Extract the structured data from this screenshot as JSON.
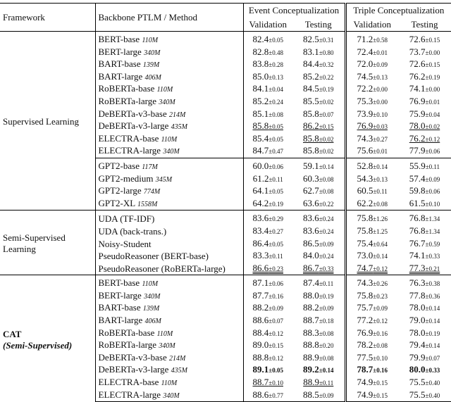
{
  "header": {
    "framework": "Framework",
    "method": "Backbone PTLM / Method",
    "event": "Event Conceptualization",
    "triple": "Triple Conceptualization",
    "columns": [
      "Validation",
      "Testing",
      "Validation",
      "Testing"
    ]
  },
  "groups": [
    {
      "framework": "Supervised Learning",
      "blocks": [
        [
          {
            "method": "BERT-base",
            "size": "110M",
            "cells": [
              [
                "82.4",
                "±0.05"
              ],
              [
                "82.5",
                "±0.31"
              ],
              [
                "71.2",
                "±0.58"
              ],
              [
                "72.6",
                "±0.15"
              ]
            ]
          },
          {
            "method": "BERT-large",
            "size": "340M",
            "cells": [
              [
                "82.8",
                "±0.48"
              ],
              [
                "83.1",
                "±0.80"
              ],
              [
                "72.4",
                "±0.01"
              ],
              [
                "73.7",
                "±0.00"
              ]
            ]
          },
          {
            "method": "BART-base",
            "size": "139M",
            "cells": [
              [
                "83.8",
                "±0.28"
              ],
              [
                "84.4",
                "±0.32"
              ],
              [
                "72.0",
                "±0.09"
              ],
              [
                "72.6",
                "±0.15"
              ]
            ]
          },
          {
            "method": "BART-large",
            "size": "406M",
            "cells": [
              [
                "85.0",
                "±0.13"
              ],
              [
                "85.2",
                "±0.22"
              ],
              [
                "74.5",
                "±0.13"
              ],
              [
                "76.2",
                "±0.19"
              ]
            ]
          },
          {
            "method": "RoBERTa-base",
            "size": "110M",
            "cells": [
              [
                "84.1",
                "±0.04"
              ],
              [
                "84.5",
                "±0.19"
              ],
              [
                "72.2",
                "±0.00"
              ],
              [
                "74.1",
                "±0.00"
              ]
            ]
          },
          {
            "method": "RoBERTa-large",
            "size": "340M",
            "cells": [
              [
                "85.2",
                "±0.24"
              ],
              [
                "85.5",
                "±0.02"
              ],
              [
                "75.3",
                "±0.00"
              ],
              [
                "76.9",
                "±0.01"
              ]
            ]
          },
          {
            "method": "DeBERTa-v3-base",
            "size": "214M",
            "cells": [
              [
                "85.1",
                "±0.08"
              ],
              [
                "85.8",
                "±0.07"
              ],
              [
                "73.9",
                "±0.10"
              ],
              [
                "75.9",
                "±0.04"
              ]
            ]
          },
          {
            "method": "DeBERTa-v3-large",
            "size": "435M",
            "cells": [
              [
                "85.8",
                "±0.05"
              ],
              [
                "86.2",
                "±0.15"
              ],
              [
                "76.9",
                "±0.03"
              ],
              [
                "78.0",
                "±0.02"
              ]
            ]
          },
          {
            "method": "ELECTRA-base",
            "size": "110M",
            "cells": [
              [
                "85.4",
                "±0.05"
              ],
              [
                "85.8",
                "±0.02"
              ],
              [
                "74.3",
                "±0.27"
              ],
              [
                "76.2",
                "±0.12"
              ]
            ]
          },
          {
            "method": "ELECTRA-large",
            "size": "340M",
            "cells": [
              [
                "84.7",
                "±0.47"
              ],
              [
                "85.8",
                "±0.02"
              ],
              [
                "75.6",
                "±0.01"
              ],
              [
                "77.9",
                "±0.06"
              ]
            ]
          }
        ],
        [
          {
            "method": "GPT2-base",
            "size": "117M",
            "cells": [
              [
                "60.0",
                "±0.06"
              ],
              [
                "59.1",
                "±0.14"
              ],
              [
                "52.8",
                "±0.14"
              ],
              [
                "55.9",
                "±0.11"
              ]
            ]
          },
          {
            "method": "GPT2-medium",
            "size": "345M",
            "cells": [
              [
                "61.2",
                "±0.11"
              ],
              [
                "60.3",
                "±0.08"
              ],
              [
                "54.3",
                "±0.13"
              ],
              [
                "57.4",
                "±0.09"
              ]
            ]
          },
          {
            "method": "GPT2-large",
            "size": "774M",
            "cells": [
              [
                "64.1",
                "±0.05"
              ],
              [
                "62.7",
                "±0.08"
              ],
              [
                "60.5",
                "±0.11"
              ],
              [
                "59.8",
                "±0.06"
              ]
            ]
          },
          {
            "method": "GPT2-XL",
            "size": "1558M",
            "cells": [
              [
                "64.2",
                "±0.19"
              ],
              [
                "63.6",
                "±0.22"
              ],
              [
                "62.2",
                "±0.08"
              ],
              [
                "61.5",
                "±0.10"
              ]
            ]
          }
        ]
      ]
    },
    {
      "framework": "Semi-Supervised Learning",
      "blocks": [
        [
          {
            "method": "UDA (TF-IDF)",
            "cells": [
              [
                "83.6",
                "±0.29"
              ],
              [
                "83.6",
                "±0.24"
              ],
              [
                "75.8",
                "±1.26"
              ],
              [
                "76.8",
                "±1.34"
              ]
            ]
          },
          {
            "method": "UDA (back-trans.)",
            "cells": [
              [
                "83.4",
                "±0.27"
              ],
              [
                "83.6",
                "±0.24"
              ],
              [
                "75.8",
                "±1.25"
              ],
              [
                "76.8",
                "±1.34"
              ]
            ]
          },
          {
            "method": "Noisy-Student",
            "cells": [
              [
                "86.4",
                "±0.05"
              ],
              [
                "86.5",
                "±0.09"
              ],
              [
                "75.4",
                "±0.64"
              ],
              [
                "76.7",
                "±0.59"
              ]
            ]
          },
          {
            "method": "PseudoReasoner (BERT-base)",
            "cells": [
              [
                "83.3",
                "±0.11"
              ],
              [
                "84.0",
                "±0.24"
              ],
              [
                "73.0",
                "±0.14"
              ],
              [
                "74.1",
                "±0.33"
              ]
            ]
          },
          {
            "method": "PseudoReasoner (RoBERTa-large)",
            "cells": [
              [
                "86.6",
                "±0.23"
              ],
              [
                "86.7",
                "±0.33"
              ],
              [
                "74.7",
                "±0.12"
              ],
              [
                "77.3",
                "±0.21"
              ]
            ]
          }
        ]
      ]
    },
    {
      "framework": "CAT",
      "subtitle": "(Semi-Supervised)",
      "blocks": [
        [
          {
            "method": "BERT-base",
            "size": "110M",
            "cells": [
              [
                "87.1",
                "±0.06"
              ],
              [
                "87.4",
                "±0.11"
              ],
              [
                "74.3",
                "±0.26"
              ],
              [
                "76.3",
                "±0.38"
              ]
            ]
          },
          {
            "method": "BERT-large",
            "size": "340M",
            "cells": [
              [
                "87.7",
                "±0.16"
              ],
              [
                "88.0",
                "±0.19"
              ],
              [
                "75.8",
                "±0.23"
              ],
              [
                "77.8",
                "±0.36"
              ]
            ]
          },
          {
            "method": "BART-base",
            "size": "139M",
            "cells": [
              [
                "88.2",
                "±0.09"
              ],
              [
                "88.2",
                "±0.09"
              ],
              [
                "75.7",
                "±0.09"
              ],
              [
                "78.0",
                "±0.14"
              ]
            ]
          },
          {
            "method": "BART-large",
            "size": "406M",
            "cells": [
              [
                "88.6",
                "±0.07"
              ],
              [
                "88.7",
                "±0.18"
              ],
              [
                "77.2",
                "±0.12"
              ],
              [
                "79.0",
                "±0.14"
              ]
            ]
          },
          {
            "method": "RoBERTa-base",
            "size": "110M",
            "cells": [
              [
                "88.4",
                "±0.12"
              ],
              [
                "88.3",
                "±0.08"
              ],
              [
                "76.9",
                "±0.16"
              ],
              [
                "78.0",
                "±0.19"
              ]
            ]
          },
          {
            "method": "RoBERTa-large",
            "size": "340M",
            "cells": [
              [
                "89.0",
                "±0.15"
              ],
              [
                "88.8",
                "±0.20"
              ],
              [
                "78.2",
                "±0.08"
              ],
              [
                "79.4",
                "±0.14"
              ]
            ]
          },
          {
            "method": "DeBERTa-v3-base",
            "size": "214M",
            "cells": [
              [
                "88.8",
                "±0.12"
              ],
              [
                "88.9",
                "±0.08"
              ],
              [
                "77.5",
                "±0.10"
              ],
              [
                "79.9",
                "±0.07"
              ]
            ]
          },
          {
            "method": "DeBERTa-v3-large",
            "size": "435M",
            "cells": [
              [
                "89.1",
                "±0.05"
              ],
              [
                "89.2",
                "±0.14"
              ],
              [
                "78.7",
                "±0.16"
              ],
              [
                "80.0",
                "±0.33"
              ]
            ]
          },
          {
            "method": "ELECTRA-base",
            "size": "110M",
            "cells": [
              [
                "88.7",
                "±0.10"
              ],
              [
                "88.9",
                "±0.11"
              ],
              [
                "74.9",
                "±0.15"
              ],
              [
                "75.5",
                "±0.40"
              ]
            ]
          },
          {
            "method": "ELECTRA-large",
            "size": "340M",
            "cells": [
              [
                "88.6",
                "±0.77"
              ],
              [
                "88.5",
                "±0.09"
              ],
              [
                "74.9",
                "±0.15"
              ],
              [
                "75.5",
                "±0.40"
              ]
            ]
          }
        ]
      ]
    }
  ]
}
